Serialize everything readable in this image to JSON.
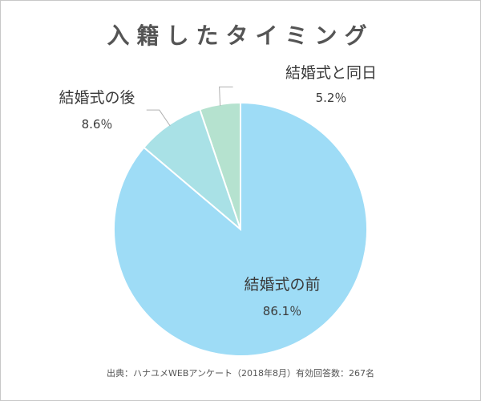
{
  "title": "入籍したタイミング",
  "source": "出典：ハナユメWEBアンケート（2018年8月）有効回答数：267名",
  "colors": {
    "before": "#9edcf6",
    "after": "#a9e1e6",
    "same_day": "#b5e2cf",
    "slice_border": "#ffffff",
    "leader": "#b0b0b0"
  },
  "chart_data": {
    "type": "pie",
    "title": "入籍したタイミング",
    "slices": [
      {
        "key": "same_day",
        "name": "結婚式と同日",
        "value": 5.2,
        "label": "5.2％"
      },
      {
        "key": "after",
        "name": "結婚式の後",
        "value": 8.6,
        "label": "8.6％"
      },
      {
        "key": "before",
        "name": "結婚式の前",
        "value": 86.1,
        "label": "86.1％"
      }
    ],
    "unit": "％"
  }
}
